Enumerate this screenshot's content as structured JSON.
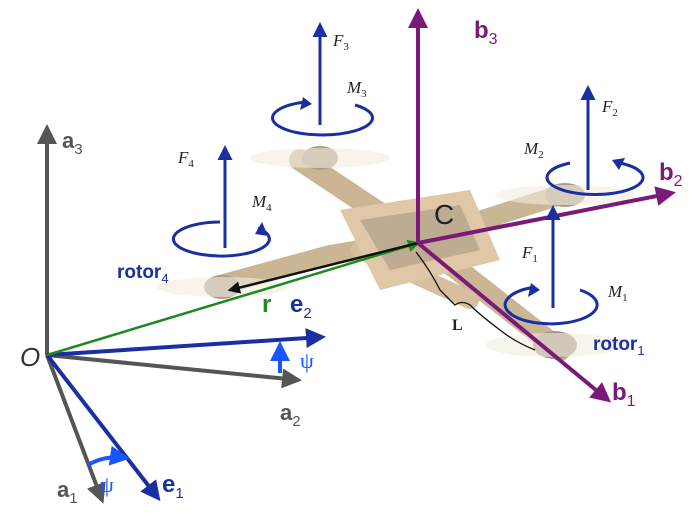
{
  "labels": {
    "a3": "a",
    "a3_sub": "3",
    "a2": "a",
    "a2_sub": "2",
    "a1": "a",
    "a1_sub": "1",
    "origin": "O",
    "r": "r",
    "e2": "e",
    "e2_sub": "2",
    "e1": "e",
    "e1_sub": "1",
    "psi_e2": "ψ",
    "psi_e1": "ψ",
    "b3": "b",
    "b3_sub": "3",
    "b2": "b",
    "b2_sub": "2",
    "b1": "b",
    "b1_sub": "1",
    "center": "C",
    "L": "L",
    "F1": "F",
    "F1_sub": "1",
    "F2": "F",
    "F2_sub": "2",
    "F3": "F",
    "F3_sub": "3",
    "F4": "F",
    "F4_sub": "4",
    "M1": "M",
    "M1_sub": "1",
    "M2": "M",
    "M2_sub": "2",
    "M3": "M",
    "M3_sub": "3",
    "M4": "M",
    "M4_sub": "4",
    "rotor1": "rotor",
    "rotor1_sub": "1",
    "rotor4": "rotor",
    "rotor4_sub": "4"
  },
  "colors": {
    "inertial_frame": "#555555",
    "intermediate_frame": "#1a2fa0",
    "body_frame": "#7a1a78",
    "position_vector": "#1e8a1e",
    "rotor_vector": "#111111",
    "psi_arrow": "#1a55ff",
    "drone_body": "#c9a676"
  }
}
